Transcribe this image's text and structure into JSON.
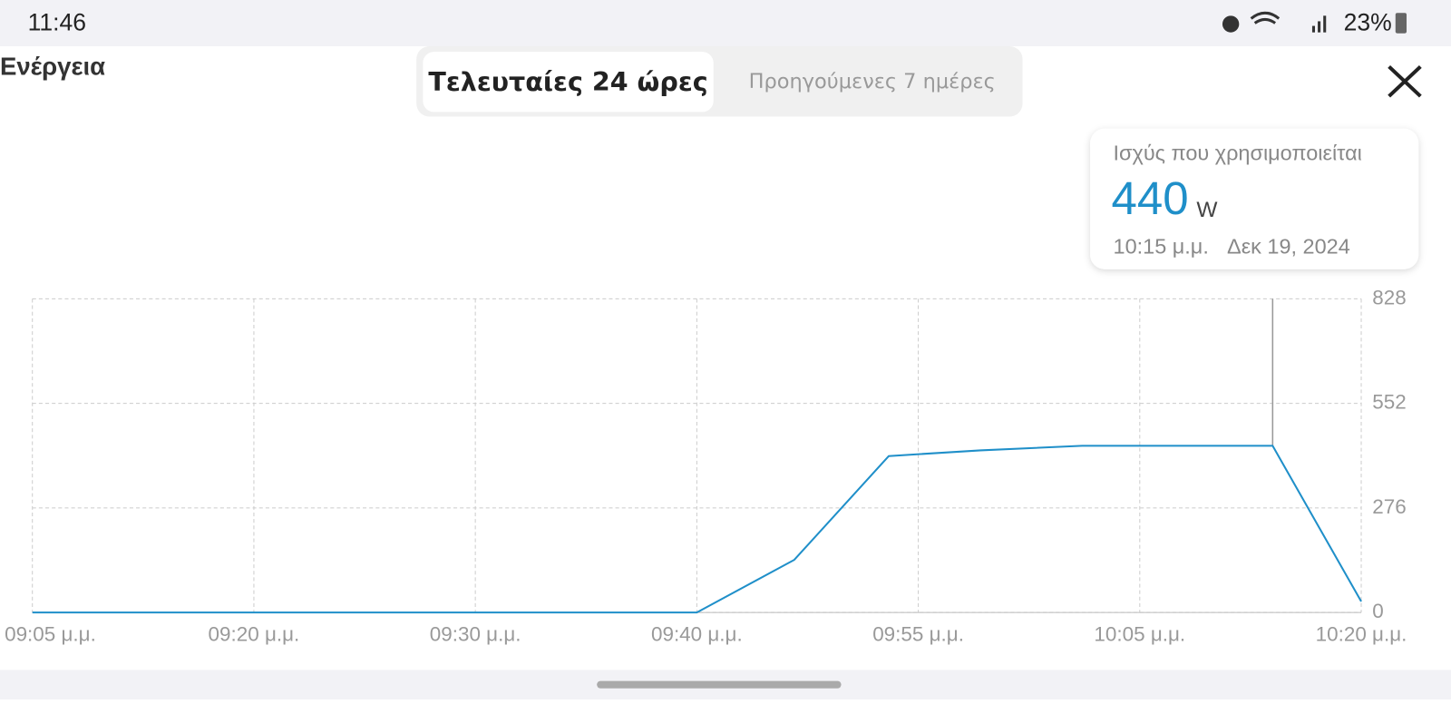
{
  "status_bar": {
    "time": "11:46",
    "battery": "23%"
  },
  "header": {
    "title": "Ενέργεια",
    "tabs": [
      "Τελευταίες 24 ώρες",
      "Προηγούμενες 7 ημέρες"
    ]
  },
  "tooltip": {
    "label": "Ισχύς που χρησιμοποιείται",
    "value": "440",
    "unit": "W",
    "time": "10:15 μ.μ.",
    "date": "Δεκ 19, 2024"
  },
  "chart_data": {
    "type": "line",
    "x": [
      "21:05:00",
      "21:42:30",
      "21:48:00",
      "21:53:20",
      "21:58:30",
      "22:04:15",
      "22:15:00",
      "22:20:00"
    ],
    "series": [
      {
        "name": "Ισχύς που χρησιμοποιείται",
        "color": "#1f8fc9",
        "values": [
          0,
          0,
          139,
          413,
          428,
          440,
          440,
          29
        ]
      }
    ],
    "xlim": [
      "21:05:00",
      "22:20:00"
    ],
    "xticks": [
      {
        "value": "21:05:00",
        "label": "09:05 μ.μ."
      },
      {
        "value": "21:17:30",
        "label": "09:20 μ.μ."
      },
      {
        "value": "21:30:00",
        "label": "09:30 μ.μ."
      },
      {
        "value": "21:42:30",
        "label": "09:40 μ.μ."
      },
      {
        "value": "21:55:00",
        "label": "09:55 μ.μ."
      },
      {
        "value": "22:07:30",
        "label": "10:05 μ.μ."
      },
      {
        "value": "22:20:00",
        "label": "10:20 μ.μ."
      }
    ],
    "ylim": [
      0,
      828
    ],
    "yticks": [
      0,
      276,
      552,
      828
    ],
    "grid": true
  }
}
